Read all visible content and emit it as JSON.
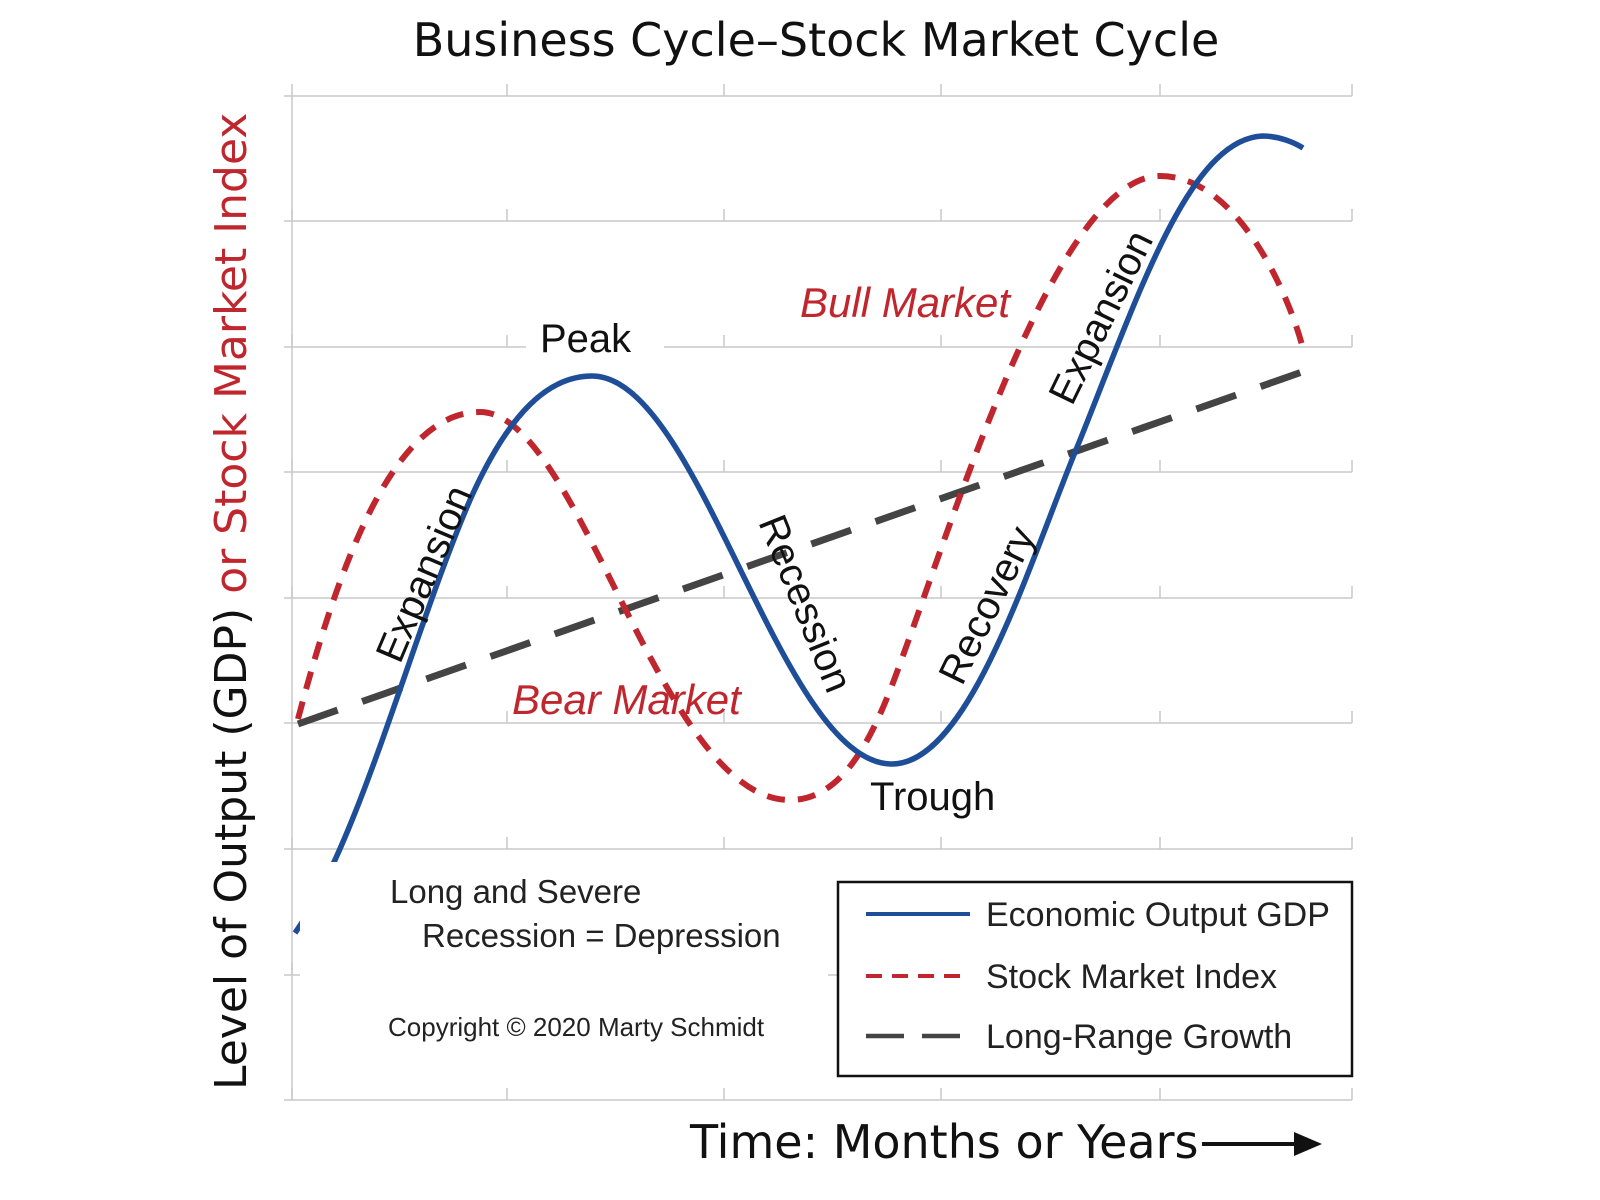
{
  "title": "Business Cycle–Stock Market Cycle",
  "y_axis_label": {
    "part1": "Level of Output (GDP)",
    "part2": " or Stock Market Index"
  },
  "x_axis_label": "Time: Months or Years",
  "phase_labels": {
    "expansion_1": "Expansion",
    "peak": "Peak",
    "recession": "Recession",
    "trough": "Trough",
    "recovery": "Recovery",
    "expansion_2": "Expansion"
  },
  "market_labels": {
    "bull": "Bull Market",
    "bear": "Bear Market"
  },
  "note": {
    "line1": "Long and Severe",
    "line2": "Recession = Depression"
  },
  "copyright": "Copyright © 2020  Marty Schmidt",
  "legend": [
    {
      "label": "Economic Output GDP",
      "color": "#1f4e99",
      "style": "solid"
    },
    {
      "label": "Stock Market Index",
      "color": "#c0262d",
      "style": "dashed"
    },
    {
      "label": "Long-Range Growth",
      "color": "#444444",
      "style": "long-dash"
    }
  ],
  "colors": {
    "gdp": "#1f4e99",
    "stock": "#c0262d",
    "growth": "#444444",
    "grid": "#c8c8c8"
  },
  "chart_data": {
    "type": "line",
    "grid": true,
    "axis_ticks_labeled": false,
    "series": [
      {
        "name": "Economic Output GDP",
        "shape": "sinusoid",
        "points": [
          {
            "x": 0.0,
            "y": 0.15
          },
          {
            "x": 0.28,
            "y": 0.7
          },
          {
            "x": 0.56,
            "y": 0.32
          },
          {
            "x": 0.92,
            "y": 0.95
          },
          {
            "x": 0.95,
            "y": 0.94
          }
        ]
      },
      {
        "name": "Stock Market Index",
        "shape": "sinusoid",
        "points": [
          {
            "x": 0.0,
            "y": 0.37
          },
          {
            "x": 0.18,
            "y": 0.68
          },
          {
            "x": 0.47,
            "y": 0.3
          },
          {
            "x": 0.82,
            "y": 0.91
          },
          {
            "x": 0.95,
            "y": 0.75
          }
        ]
      },
      {
        "name": "Long-Range Growth",
        "shape": "linear",
        "points": [
          {
            "x": 0.0,
            "y": 0.37
          },
          {
            "x": 0.95,
            "y": 0.72
          }
        ]
      }
    ]
  }
}
